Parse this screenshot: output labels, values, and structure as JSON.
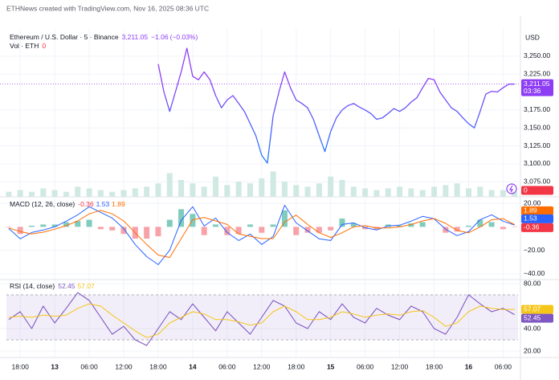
{
  "header": {
    "attribution": "ETHNews created with TradingView.com, Nov 16, 2025 08:36 UTC"
  },
  "chart_data": [
    {
      "type": "line",
      "title": "Ethereum / U.S. Dollar · 5 · Binance",
      "last_label": "3,211.05",
      "change_label": "−1.06",
      "change_pct_label": "(−0.03%)",
      "countdown": "03:36",
      "currency": "USD",
      "color_top": "#8e3df5",
      "color_bottom": "#2979ff",
      "x": [
        24,
        25,
        26,
        27,
        28,
        29,
        30,
        31,
        32,
        33,
        34,
        35,
        36,
        37,
        38,
        39,
        40,
        41,
        42,
        43,
        44,
        45,
        46,
        47,
        48,
        49,
        50,
        51,
        52,
        53,
        54,
        55,
        56,
        57,
        58,
        59,
        60,
        61,
        62,
        63,
        64,
        65,
        66,
        67,
        68,
        69,
        70,
        71,
        72,
        73,
        74,
        75,
        76,
        77,
        78,
        79,
        80,
        81,
        82,
        83,
        84,
        85,
        86
      ],
      "values": [
        3239,
        3200,
        3173,
        3200,
        3228,
        3261,
        3222,
        3217,
        3228,
        3217,
        3195,
        3178,
        3189,
        3195,
        3184,
        3173,
        3156,
        3139,
        3112,
        3101,
        3167,
        3200,
        3228,
        3206,
        3189,
        3184,
        3178,
        3162,
        3139,
        3117,
        3145,
        3164,
        3175,
        3181,
        3184,
        3179,
        3175,
        3170,
        3162,
        3164,
        3170,
        3177,
        3173,
        3178,
        3186,
        3192,
        3206,
        3219,
        3217,
        3200,
        3189,
        3178,
        3173,
        3164,
        3156,
        3150,
        3173,
        3197,
        3201,
        3200,
        3206,
        3211,
        3211.05
      ],
      "xlim": [
        -2.4,
        86.6
      ],
      "ylim": [
        3054,
        3289
      ],
      "yticks": [
        {
          "value": 3075,
          "label": "3,075.00"
        },
        {
          "value": 3100,
          "label": "3,100.00"
        },
        {
          "value": 3125,
          "label": "3,125.00"
        },
        {
          "value": 3150,
          "label": "3,150.00"
        },
        {
          "value": 3175,
          "label": "3,175.00"
        },
        {
          "value": 3225,
          "label": "3,225.00"
        },
        {
          "value": 3250,
          "label": "3,250.00"
        }
      ]
    },
    {
      "type": "bar",
      "title": "Vol · ETH",
      "legend_value": 0,
      "color": "#c4e3dc",
      "value_color": "#f23645",
      "x": [
        -2,
        0,
        2,
        4,
        6,
        8,
        10,
        12,
        14,
        16,
        18,
        20,
        22,
        24,
        26,
        28,
        30,
        32,
        34,
        36,
        38,
        40,
        42,
        44,
        46,
        48,
        50,
        52,
        54,
        56,
        58,
        60,
        62,
        64,
        66,
        68,
        70,
        72,
        74,
        76,
        78,
        80,
        82,
        84,
        86
      ],
      "values": [
        3,
        4,
        3,
        5,
        4,
        3,
        6,
        5,
        4,
        3,
        4,
        5,
        6,
        8,
        14,
        10,
        8,
        6,
        12,
        7,
        9,
        8,
        11,
        15,
        9,
        7,
        6,
        8,
        12,
        10,
        6,
        5,
        4,
        5,
        6,
        5,
        4,
        6,
        7,
        8,
        5,
        6,
        4,
        4,
        3
      ],
      "xlim": [
        -2.4,
        86.6
      ],
      "ylim": [
        0,
        100
      ]
    },
    {
      "type": "macd",
      "title": "MACD (12, 26, close)",
      "x": [
        -2,
        0,
        2,
        4,
        6,
        8,
        10,
        12,
        14,
        16,
        18,
        20,
        22,
        24,
        26,
        28,
        30,
        32,
        34,
        36,
        38,
        40,
        42,
        44,
        46,
        48,
        50,
        52,
        54,
        56,
        58,
        60,
        62,
        64,
        66,
        68,
        70,
        72,
        74,
        76,
        78,
        80,
        82,
        84,
        86
      ],
      "histogram": {
        "color_up": "#7fcbbd",
        "color_down": "#f7a1a8",
        "label_color": "#f23645",
        "values": [
          -0.4,
          -6,
          1,
          2,
          2,
          4,
          5,
          6,
          -2,
          -3,
          -6,
          -10,
          -10,
          -8,
          6,
          15,
          11,
          -7,
          2,
          -7,
          -6,
          2,
          -5,
          2,
          14,
          -7,
          -5,
          -5,
          -3,
          7,
          3,
          -2,
          -2,
          2,
          1,
          3,
          4,
          0,
          -5,
          -4,
          1,
          6,
          4,
          -2,
          -0.36
        ]
      },
      "series": [
        {
          "color": "#2962ff",
          "values": [
            -1.4,
            -10.2,
            -4.8,
            -2.7,
            0,
            4.8,
            10.2,
            17.1,
            12.3,
            7.5,
            -1.4,
            -15.0,
            -25.3,
            -32.1,
            -19.8,
            5.5,
            17.1,
            0.7,
            7.5,
            -4.8,
            -11.6,
            -6.1,
            -15.0,
            -8.2,
            18.4,
            3.4,
            -3.4,
            -10.2,
            -11.6,
            2.0,
            3.4,
            -0.7,
            -2.7,
            0.7,
            1.4,
            4.8,
            8.9,
            6.8,
            -2.0,
            -7.5,
            -4.1,
            6.1,
            10.2,
            4.8,
            1.53
          ]
        },
        {
          "color": "#ff6d00",
          "values": [
            -1,
            -4,
            -6,
            -4.5,
            -2,
            1,
            5,
            11,
            14,
            11,
            5,
            -5,
            -15,
            -24,
            -26,
            -10,
            6,
            8,
            5,
            2,
            -6,
            -8,
            -10,
            -10,
            4,
            10,
            2,
            -5,
            -9,
            -5,
            0,
            1,
            -1,
            -1,
            0,
            2,
            5,
            7,
            3,
            -3,
            -5,
            0,
            6,
            7,
            1.89
          ]
        }
      ],
      "xlim": [
        -2.4,
        86.6
      ],
      "ylim": [
        -44.8,
        25.5
      ],
      "yticks": [
        {
          "value": -40,
          "label": "−40.00"
        },
        {
          "value": -20,
          "label": "−20.00"
        },
        {
          "value": 20,
          "label": "20.00"
        }
      ]
    },
    {
      "type": "rsi",
      "title": "RSI (14, close)",
      "band": [
        30,
        70
      ],
      "band_color": "rgba(126,87,194,0.10)",
      "x": [
        -2,
        0,
        2,
        4,
        6,
        8,
        10,
        12,
        14,
        16,
        18,
        20,
        22,
        24,
        26,
        28,
        30,
        32,
        34,
        36,
        38,
        40,
        42,
        44,
        46,
        48,
        50,
        52,
        54,
        56,
        58,
        60,
        62,
        64,
        66,
        68,
        70,
        72,
        74,
        76,
        78,
        80,
        82,
        84,
        86
      ],
      "series": [
        {
          "color": "#7e57c2",
          "values": [
            48,
            55,
            40,
            60,
            45,
            58,
            72,
            65,
            50,
            35,
            42,
            30,
            25,
            40,
            55,
            48,
            62,
            50,
            38,
            55,
            45,
            35,
            50,
            65,
            60,
            45,
            40,
            55,
            48,
            62,
            50,
            45,
            58,
            52,
            48,
            60,
            55,
            40,
            35,
            50,
            70,
            62,
            55,
            58,
            52.45
          ]
        },
        {
          "color": "#f5c518",
          "values": [
            50,
            51,
            50,
            52,
            51,
            52,
            58,
            62,
            60,
            52,
            45,
            38,
            32,
            35,
            45,
            50,
            55,
            53,
            48,
            48,
            46,
            43,
            45,
            55,
            60,
            55,
            48,
            48,
            50,
            55,
            53,
            50,
            52,
            53,
            52,
            55,
            56,
            50,
            42,
            45,
            55,
            60,
            58,
            57,
            57.07
          ]
        }
      ],
      "xlim": [
        -2.4,
        86.6
      ],
      "ylim": [
        14.3,
        83.6
      ],
      "yticks": [
        {
          "value": 20,
          "label": "20.00"
        },
        {
          "value": 40,
          "label": "40.00"
        },
        {
          "value": 80,
          "label": "80.00"
        }
      ],
      "xticks": [
        {
          "value": 0,
          "label": "18:00"
        },
        {
          "value": 6,
          "label": "13"
        },
        {
          "value": 12,
          "label": "06:00"
        },
        {
          "value": 18,
          "label": "12:00"
        },
        {
          "value": 24,
          "label": "18:00"
        },
        {
          "value": 30,
          "label": "14"
        },
        {
          "value": 36,
          "label": "06:00"
        },
        {
          "value": 42,
          "label": "12:00"
        },
        {
          "value": 48,
          "label": "18:00"
        },
        {
          "value": 54,
          "label": "15"
        },
        {
          "value": 60,
          "label": "06:00"
        },
        {
          "value": 66,
          "label": "12:00"
        },
        {
          "value": 72,
          "label": "18:00"
        },
        {
          "value": 78,
          "label": "16"
        },
        {
          "value": 84,
          "label": "06:00"
        }
      ]
    }
  ]
}
